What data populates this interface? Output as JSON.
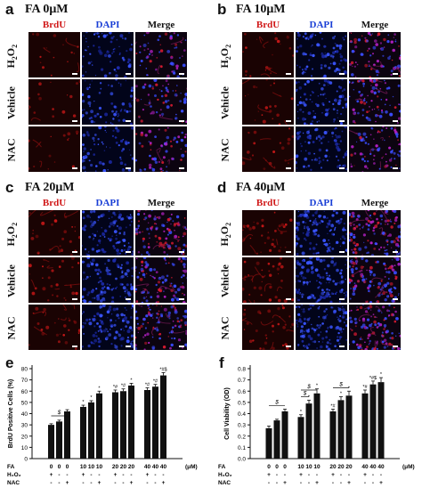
{
  "panels": [
    {
      "letter": "a",
      "title": "FA 0μM"
    },
    {
      "letter": "b",
      "title": "FA 10μM"
    },
    {
      "letter": "c",
      "title": "FA 20μM"
    },
    {
      "letter": "d",
      "title": "FA 40μM"
    },
    {
      "letter": "e"
    },
    {
      "letter": "f"
    }
  ],
  "columns": [
    "BrdU",
    "DAPI",
    "Merge"
  ],
  "rows": {
    "h2o2": "H",
    "h2o2_sub": "2",
    "h2o2_tail": "O",
    "h2o2_sub2": "2",
    "vehicle": "Vehicle",
    "nac": "NAC"
  },
  "colors": {
    "brdu": "#d01818",
    "dapi": "#1a3fd6",
    "bar": "#111111"
  },
  "chart_data": [
    {
      "type": "bar",
      "ylabel": "BrdU Positive Cells (%)",
      "ylim": [
        0,
        80
      ],
      "yticks": [
        0,
        10,
        20,
        30,
        40,
        50,
        60,
        70,
        80
      ],
      "categories": [
        "0",
        "0",
        "0",
        "10",
        "10",
        "10",
        "20",
        "20",
        "20",
        "40",
        "40",
        "40"
      ],
      "values": [
        30,
        33,
        42,
        46,
        50,
        58,
        59,
        60,
        65,
        61,
        64,
        74
      ],
      "errors": [
        1.0,
        1.2,
        1.5,
        1.5,
        1.5,
        2.0,
        2.0,
        2.0,
        2.0,
        2.0,
        2.0,
        2.5
      ],
      "annotations": [
        "",
        "",
        "",
        "*",
        "*",
        "*",
        "*#",
        "*#",
        "*",
        "*#",
        "*#",
        "*#$"
      ],
      "bracket_label": "$",
      "x_rows": [
        {
          "label": "FA",
          "unit": "(μM)",
          "values": [
            "0",
            "0",
            "0",
            "10",
            "10",
            "10",
            "20",
            "20",
            "20",
            "40",
            "40",
            "40"
          ]
        },
        {
          "label": "H₂O₂",
          "values": [
            "+",
            "-",
            "-",
            "+",
            "-",
            "-",
            "+",
            "-",
            "-",
            "+",
            "-",
            "-"
          ]
        },
        {
          "label": "NAC",
          "values": [
            "-",
            "-",
            "+",
            "-",
            "-",
            "+",
            "-",
            "-",
            "+",
            "-",
            "-",
            "+"
          ]
        }
      ]
    },
    {
      "type": "bar",
      "ylabel": "Cell Viability (OD)",
      "ylim": [
        0,
        0.8
      ],
      "yticks": [
        0.0,
        0.1,
        0.2,
        0.3,
        0.4,
        0.5,
        0.6,
        0.7,
        0.8
      ],
      "yticklabels": [
        "0.0",
        "0.1",
        "0.2",
        "0.3",
        "0.4",
        "0.5",
        "0.6",
        "0.7",
        "0.8"
      ],
      "categories": [
        "0",
        "0",
        "0",
        "10",
        "10",
        "10",
        "20",
        "20",
        "20",
        "40",
        "40",
        "40"
      ],
      "values": [
        0.27,
        0.34,
        0.42,
        0.37,
        0.49,
        0.58,
        0.42,
        0.52,
        0.56,
        0.58,
        0.66,
        0.68
      ],
      "errors": [
        0.02,
        0.01,
        0.02,
        0.02,
        0.03,
        0.04,
        0.02,
        0.03,
        0.04,
        0.03,
        0.03,
        0.04
      ],
      "annotations": [
        "",
        "",
        "",
        "*",
        "*",
        "*",
        "*#",
        "*",
        "*",
        "*#",
        "*#$",
        "*"
      ],
      "bracket_labels": [
        "$",
        "$",
        "$",
        "$"
      ],
      "x_rows": [
        {
          "label": "FA",
          "unit": "(μM)",
          "values": [
            "0",
            "0",
            "0",
            "10",
            "10",
            "10",
            "20",
            "20",
            "20",
            "40",
            "40",
            "40"
          ]
        },
        {
          "label": "H₂O₂",
          "values": [
            "+",
            "-",
            "-",
            "+",
            "-",
            "-",
            "+",
            "-",
            "-",
            "+",
            "-",
            "-"
          ]
        },
        {
          "label": "NAC",
          "values": [
            "-",
            "-",
            "+",
            "-",
            "-",
            "+",
            "-",
            "-",
            "+",
            "-",
            "-",
            "+"
          ]
        }
      ]
    }
  ]
}
